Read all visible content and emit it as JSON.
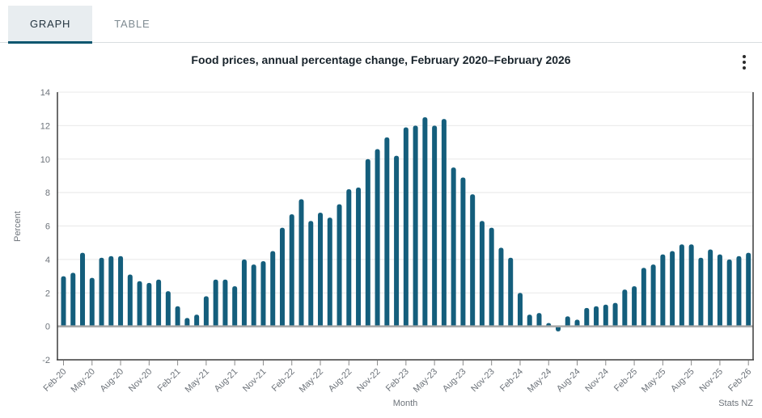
{
  "tabs": {
    "graph": "GRAPH",
    "table": "TABLE"
  },
  "title": "Food prices, annual percentage change, February 2020–February 2026",
  "footer": {
    "source": "Stats NZ"
  },
  "colors": {
    "bar": "#145e7c",
    "active_tab_underline": "#0a566f",
    "active_tab_background": "#e8edf0",
    "gridline": "#e8e8e8",
    "zero_line": "#a7a7a7",
    "axis": "#3b3b3b",
    "tick_text": "#6d737a"
  },
  "chart_data": {
    "type": "bar",
    "title": "Food prices, annual percentage change, February 2020–February 2026",
    "xlabel": "Month",
    "ylabel": "Percent",
    "ylim": [
      -2,
      14
    ],
    "ytick_step": 2,
    "yticks": [
      -2,
      0,
      2,
      4,
      6,
      8,
      10,
      12,
      14
    ],
    "grid": true,
    "legend": "none",
    "x_tick_every": 3,
    "x_tick_labels": [
      "Feb-20",
      "May-20",
      "Aug-20",
      "Nov-20",
      "Feb-21",
      "May-21",
      "Aug-21",
      "Nov-21",
      "Feb-22",
      "May-22",
      "Aug-22",
      "Nov-22",
      "Feb-23",
      "May-23",
      "Aug-23",
      "Nov-23",
      "Feb-24",
      "May-24",
      "Aug-24",
      "Nov-24",
      "Feb-25",
      "May-25",
      "Aug-25",
      "Nov-25",
      "Feb-26"
    ],
    "bar_color": "#145e7c",
    "categories": [
      "Feb-20",
      "Mar-20",
      "Apr-20",
      "May-20",
      "Jun-20",
      "Jul-20",
      "Aug-20",
      "Sep-20",
      "Oct-20",
      "Nov-20",
      "Dec-20",
      "Jan-21",
      "Feb-21",
      "Mar-21",
      "Apr-21",
      "May-21",
      "Jun-21",
      "Jul-21",
      "Aug-21",
      "Sep-21",
      "Oct-21",
      "Nov-21",
      "Dec-21",
      "Jan-22",
      "Feb-22",
      "Mar-22",
      "Apr-22",
      "May-22",
      "Jun-22",
      "Jul-22",
      "Aug-22",
      "Sep-22",
      "Oct-22",
      "Nov-22",
      "Dec-22",
      "Jan-23",
      "Feb-23",
      "Mar-23",
      "Apr-23",
      "May-23",
      "Jun-23",
      "Jul-23",
      "Aug-23",
      "Sep-23",
      "Oct-23",
      "Nov-23",
      "Dec-23",
      "Jan-24",
      "Feb-24",
      "Mar-24",
      "Apr-24",
      "May-24",
      "Jun-24",
      "Jul-24",
      "Aug-24",
      "Sep-24",
      "Oct-24",
      "Nov-24",
      "Dec-24",
      "Jan-25",
      "Feb-25",
      "Mar-25",
      "Apr-25",
      "May-25",
      "Jun-25",
      "Jul-25",
      "Aug-25",
      "Sep-25",
      "Oct-25",
      "Nov-25",
      "Dec-25",
      "Jan-26",
      "Feb-26"
    ],
    "values": [
      3.0,
      3.2,
      4.4,
      2.9,
      4.1,
      4.2,
      4.2,
      3.1,
      2.7,
      2.6,
      2.8,
      2.1,
      1.2,
      0.5,
      0.7,
      1.8,
      2.8,
      2.8,
      2.4,
      4.0,
      3.7,
      3.9,
      4.5,
      5.9,
      6.7,
      7.6,
      6.3,
      6.8,
      6.5,
      7.3,
      8.2,
      8.3,
      10.0,
      10.6,
      11.3,
      10.2,
      11.9,
      12.0,
      12.5,
      12.0,
      12.4,
      9.5,
      8.9,
      7.9,
      6.3,
      5.9,
      4.7,
      4.1,
      2.0,
      0.7,
      0.8,
      0.2,
      -0.3,
      0.6,
      0.4,
      1.1,
      1.2,
      1.3,
      1.4,
      2.2,
      2.4,
      3.5,
      3.7,
      4.3,
      4.5,
      4.9,
      4.9,
      4.1,
      4.6,
      4.3,
      4.0,
      4.2,
      4.4
    ]
  }
}
